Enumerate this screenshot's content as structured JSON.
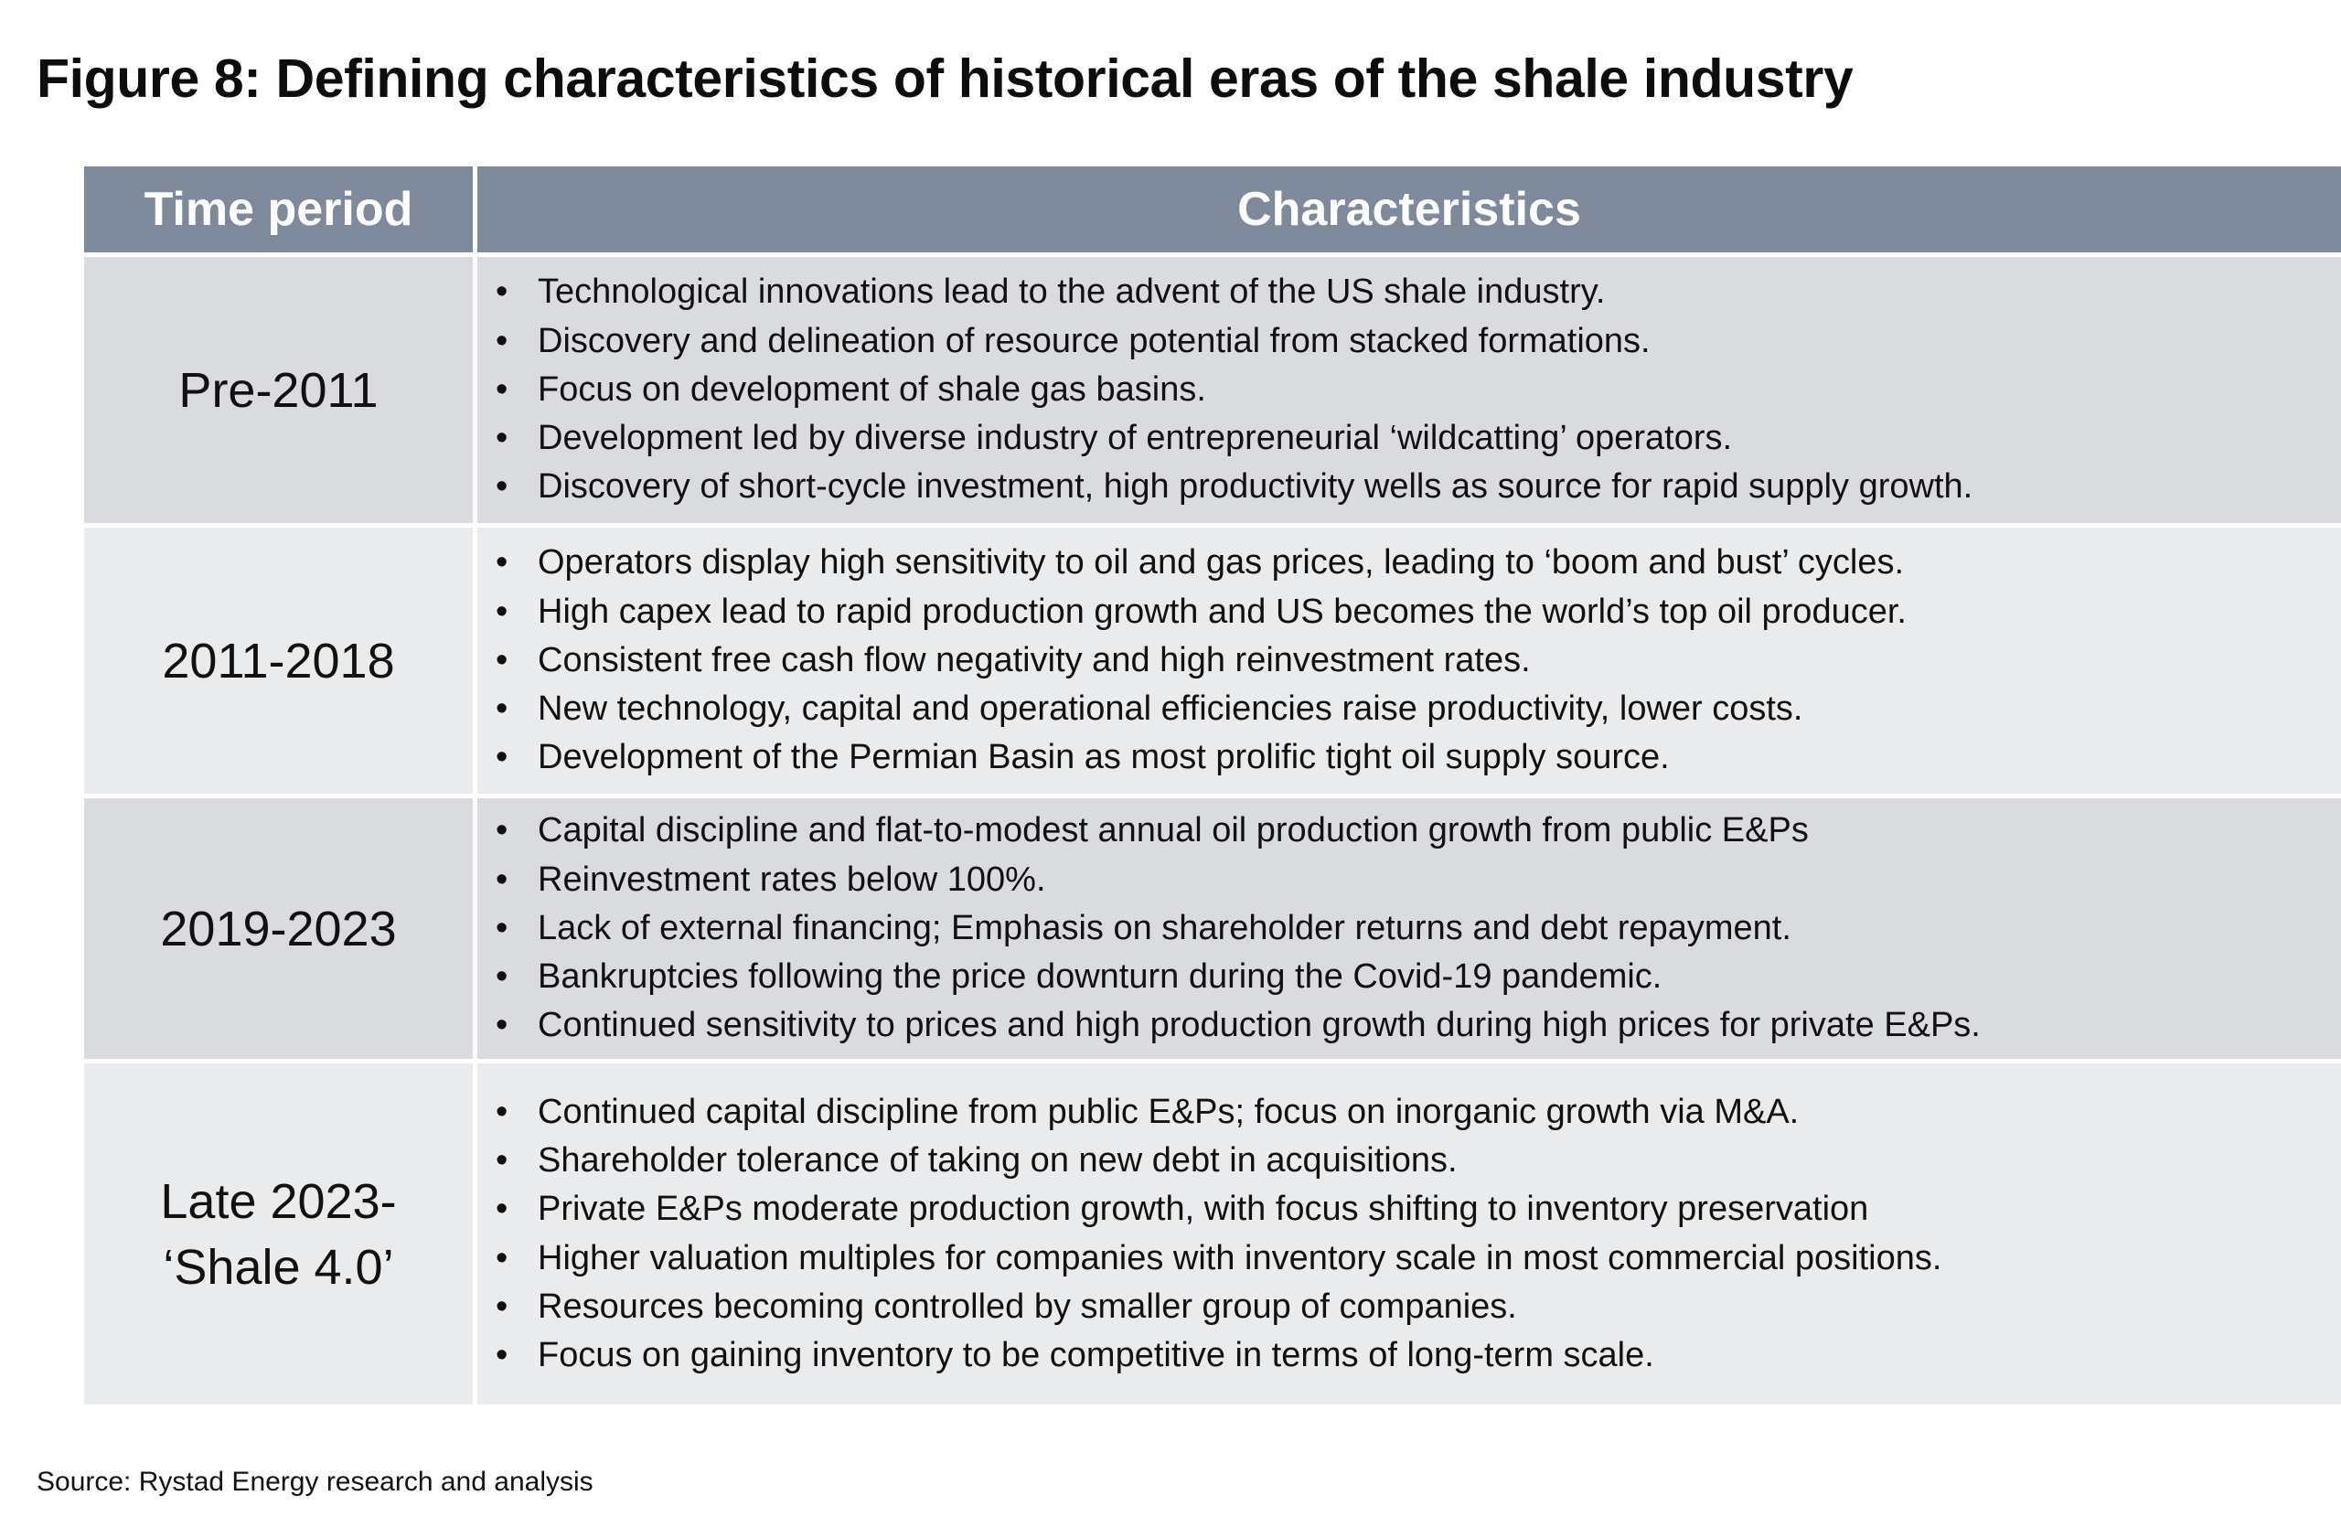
{
  "figure": {
    "title": "Figure 8: Defining characteristics of historical eras of the shale industry"
  },
  "table": {
    "headers": {
      "period": "Time period",
      "characteristics": "Characteristics"
    },
    "rows": [
      {
        "period": "Pre-2011",
        "items": [
          "Technological innovations lead to the advent of the US shale industry.",
          "Discovery and delineation of resource potential from stacked formations.",
          "Focus on development of shale gas basins.",
          "Development led by diverse industry of entrepreneurial ‘wildcatting’ operators.",
          "Discovery of short-cycle investment, high productivity wells as source for rapid supply growth."
        ]
      },
      {
        "period": "2011-2018",
        "items": [
          "Operators display high sensitivity to oil and gas prices, leading to ‘boom and bust’ cycles.",
          "High capex lead to rapid production growth and US becomes the world’s top oil producer.",
          "Consistent free cash flow negativity and high reinvestment rates.",
          "New technology, capital and operational efficiencies raise productivity, lower costs.",
          "Development of the Permian Basin as most prolific tight oil supply source."
        ]
      },
      {
        "period": "2019-2023",
        "items": [
          "Capital discipline and flat-to-modest annual oil production growth from public E&Ps",
          "Reinvestment rates below 100%.",
          "Lack of external financing; Emphasis on shareholder returns and debt repayment.",
          "Bankruptcies following the price downturn during the Covid-19 pandemic.",
          "Continued sensitivity to prices and high production growth during high prices for private E&Ps."
        ]
      },
      {
        "period": "Late 2023-\n‘Shale 4.0’",
        "items": [
          "Continued capital discipline from public E&Ps; focus on inorganic growth via M&A.",
          "Shareholder tolerance of taking on new debt in acquisitions.",
          "Private E&Ps moderate production growth, with focus shifting to inventory preservation",
          "Higher valuation multiples for companies with inventory scale in most commercial positions.",
          "Resources becoming controlled by smaller group of companies.",
          "Focus on gaining inventory to be competitive in terms of long-term scale."
        ]
      }
    ]
  },
  "source": "Source: Rystad Energy research and analysis",
  "colors": {
    "header_bg": "#7d8a9c",
    "row_dark": "#d9dbde",
    "row_light": "#eaebed"
  }
}
